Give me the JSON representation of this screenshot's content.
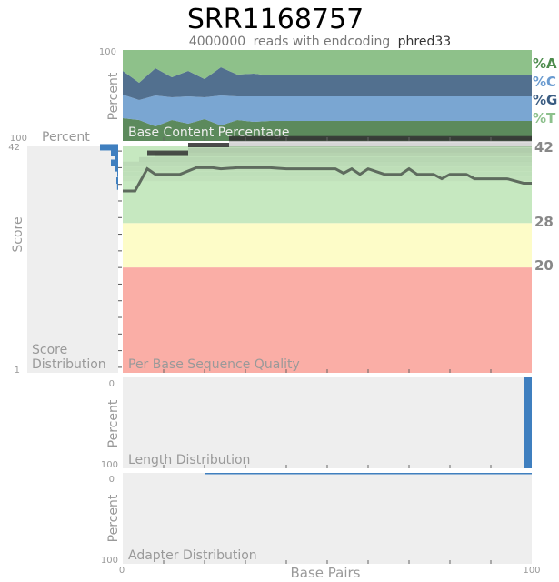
{
  "sample_name": "SRR1168757",
  "reads_count": "4000000",
  "reads_text": "reads with endcoding",
  "encoding": "phred33",
  "colors": {
    "A": "#4e8c4e",
    "C": "#6a9bd0",
    "G": "#3a5c82",
    "T": "#8cc08c",
    "green_zone": "#c6e8c0",
    "yellow_zone": "#fdfcc8",
    "red_zone": "#faaea6",
    "bar_blue": "#3f7fbf",
    "panel_bg": "#eeeeee",
    "muted_text": "#999999"
  },
  "chart_data": [
    {
      "type": "area",
      "title": "Base Content Percentage",
      "ylabel": "Percent",
      "ylim": [
        0,
        100
      ],
      "x": [
        0,
        4,
        8,
        12,
        16,
        20,
        24,
        28,
        32,
        36,
        40,
        50,
        60,
        70,
        80,
        90,
        100
      ],
      "series": [
        {
          "name": "%T",
          "values": [
            25,
            23,
            16,
            23,
            19,
            24,
            17,
            23,
            21,
            22,
            22,
            22,
            22,
            22,
            22,
            22,
            22
          ]
        },
        {
          "name": "%G",
          "values": [
            26,
            22,
            34,
            25,
            30,
            24,
            33,
            26,
            28,
            27,
            27,
            27,
            27,
            27,
            27,
            27,
            27
          ]
        },
        {
          "name": "%C",
          "values": [
            26,
            19,
            30,
            22,
            28,
            20,
            31,
            24,
            25,
            23,
            24,
            23,
            24,
            24,
            23,
            24,
            24
          ]
        },
        {
          "name": "%A",
          "values": [
            23,
            36,
            20,
            30,
            23,
            32,
            19,
            27,
            26,
            28,
            27,
            28,
            27,
            27,
            28,
            27,
            27
          ]
        }
      ]
    },
    {
      "type": "line",
      "title": "Per Base Sequence Quality",
      "ylabel": "Score",
      "ylim": [
        1,
        42
      ],
      "thresholds": [
        28,
        20
      ],
      "threshold_labels": [
        "42",
        "28",
        "20"
      ],
      "x": [
        0,
        3,
        6,
        8,
        10,
        14,
        18,
        22,
        24,
        28,
        32,
        36,
        40,
        44,
        48,
        52,
        54,
        56,
        58,
        60,
        64,
        68,
        70,
        72,
        76,
        78,
        80,
        84,
        86,
        90,
        94,
        98,
        100
      ],
      "values": [
        33.8,
        33.8,
        37.8,
        36.8,
        36.8,
        36.8,
        38.0,
        38.0,
        37.8,
        38.0,
        38.0,
        38.0,
        37.8,
        37.8,
        37.8,
        37.8,
        37.0,
        37.8,
        36.8,
        37.8,
        36.8,
        36.8,
        37.8,
        36.8,
        36.8,
        36.0,
        36.8,
        36.8,
        36.0,
        36.0,
        36.0,
        35.2,
        35.2
      ],
      "mode_marks": [
        {
          "x0": 6,
          "x1": 16,
          "y": 40.6
        },
        {
          "x0": 16,
          "x1": 26,
          "y": 42.0
        },
        {
          "x0": 26,
          "x1": 100,
          "y": 43.2
        }
      ]
    },
    {
      "type": "bar",
      "title": "Score Distribution",
      "ylim": [
        1,
        42
      ],
      "orientation": "horizontal",
      "note": "bars extend leftward; percent axis maximum 100",
      "x_axis_label": "Percent",
      "x_axis_max": "100",
      "values": [
        {
          "score": 41.6,
          "percent": 20
        },
        {
          "score": 40.6,
          "percent": 8
        },
        {
          "score": 39.8,
          "percent": 3
        },
        {
          "score": 38.8,
          "percent": 8
        },
        {
          "score": 37.8,
          "percent": 4
        },
        {
          "score": 36.8,
          "percent": 1
        },
        {
          "score": 35.6,
          "percent": 2
        },
        {
          "score": 34.5,
          "percent": 1.2
        }
      ]
    },
    {
      "type": "bar",
      "title": "Length Distribution",
      "ylabel": "Percent",
      "ylim": [
        0,
        100
      ],
      "x": [
        100
      ],
      "values": [
        100
      ]
    },
    {
      "type": "area",
      "title": "Adapter Distribution",
      "ylabel": "Percent",
      "ylim": [
        0,
        100
      ],
      "xlabel": "Base Pairs",
      "xlim": [
        0,
        100
      ],
      "x": [
        20,
        100
      ],
      "values": [
        0.5,
        0.5
      ]
    }
  ],
  "axis": {
    "top_y_max": "100",
    "score_top": "42",
    "score_bottom": "1",
    "length_top": "0",
    "length_bottom": "100",
    "adapter_top": "0",
    "adapter_bottom": "100",
    "x_min": "0",
    "x_max": "100"
  }
}
